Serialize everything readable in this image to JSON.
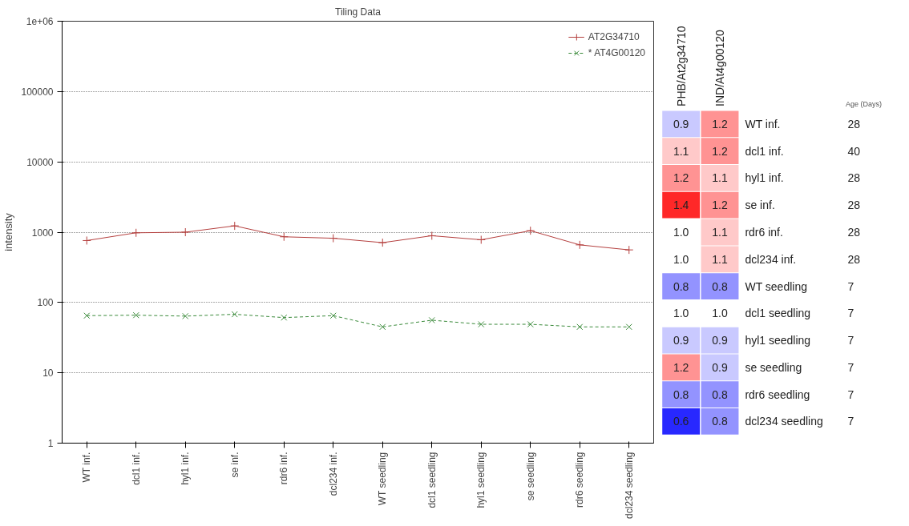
{
  "chart_data": [
    {
      "type": "line",
      "title": "Tiling Data",
      "ylabel": "intensity",
      "categories": [
        "WT inf.",
        "dcl1 inf.",
        "hyl1 inf.",
        "se inf.",
        "rdr6 inf.",
        "dcl234 inf.",
        "WT seedling",
        "dcl1 seedling",
        "hyl1 seedling",
        "se seedling",
        "rdr6 seedling",
        "dcl234 seedling"
      ],
      "series": [
        {
          "name": "AT2G34710",
          "color": "#b5403f",
          "marker": "cross",
          "line_style": "solid",
          "values": [
            760,
            980,
            1000,
            1230,
            860,
            820,
            710,
            890,
            780,
            1050,
            660,
            560
          ]
        },
        {
          "name": "* AT4G00120",
          "color": "#3a8a3a",
          "marker": "x",
          "line_style": "dashed",
          "values": [
            65,
            66,
            64,
            68,
            61,
            65,
            45,
            56,
            49,
            49,
            45,
            45
          ]
        }
      ],
      "log": "y",
      "ylim": [
        1,
        1000000
      ],
      "yticks": [
        1,
        10,
        100,
        1000,
        10000,
        100000,
        {
          "value": 1000000,
          "label": "1e+06"
        }
      ],
      "grid": "y",
      "legend": "top right"
    },
    {
      "type": "heatmap",
      "y2label": "Age (Days)",
      "categories": [
        "PHB/At2g34710",
        "IND/At4g00120"
      ],
      "y_categories": [
        "WT inf.",
        "dcl1 inf.",
        "hyl1 inf.",
        "se inf.",
        "rdr6 inf.",
        "dcl234 inf.",
        "WT seedling",
        "dcl1 seedling",
        "hyl1 seedling",
        "se seedling",
        "rdr6 seedling",
        "dcl234 seedling"
      ],
      "y2_categories": [
        "28",
        "40",
        "28",
        "28",
        "28",
        "28",
        "7",
        "7",
        "7",
        "7",
        "7",
        "7"
      ],
      "cells": [
        [
          0.9,
          1.2
        ],
        [
          1.1,
          1.2
        ],
        [
          1.2,
          1.1
        ],
        [
          1.4,
          1.2
        ],
        [
          1.0,
          1.1
        ],
        [
          1.0,
          1.1
        ],
        [
          0.8,
          0.8
        ],
        [
          1.0,
          1.0
        ],
        [
          0.9,
          0.9
        ],
        [
          1.2,
          0.9
        ],
        [
          0.8,
          0.8
        ],
        [
          0.6,
          0.8
        ]
      ],
      "cell_labels": [
        [
          "0.9",
          "1.2"
        ],
        [
          "1.1",
          "1.2"
        ],
        [
          "1.2",
          "1.1"
        ],
        [
          "1.4",
          "1.2"
        ],
        [
          "1.0",
          "1.1"
        ],
        [
          "1.0",
          "1.1"
        ],
        [
          "0.8",
          "0.8"
        ],
        [
          "1.0",
          "1.0"
        ],
        [
          "0.9",
          "0.9"
        ],
        [
          "1.2",
          "0.9"
        ],
        [
          "0.8",
          "0.8"
        ],
        [
          "0.6",
          "0.8"
        ]
      ]
    }
  ]
}
